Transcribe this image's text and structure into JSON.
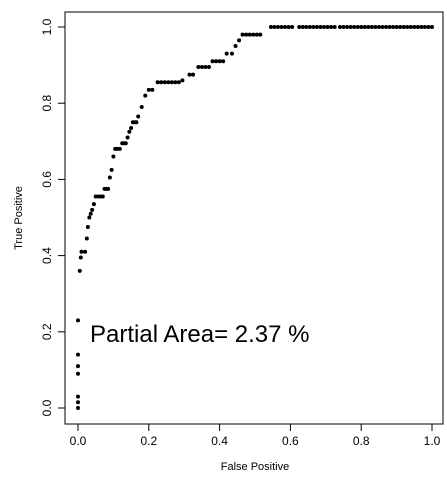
{
  "chart_data": {
    "type": "scatter",
    "xlabel": "False Positive",
    "ylabel": "True Positive",
    "xlim": [
      0,
      1
    ],
    "ylim": [
      0,
      1
    ],
    "x_ticks": [
      0.0,
      0.2,
      0.4,
      0.6,
      0.8,
      1.0
    ],
    "x_tick_labels": [
      "0.0",
      "0.2",
      "0.4",
      "0.6",
      "0.8",
      "1.0"
    ],
    "y_ticks": [
      0.0,
      0.2,
      0.4,
      0.6,
      0.8,
      1.0
    ],
    "y_tick_labels": [
      "0.0",
      "0.2",
      "0.4",
      "0.6",
      "0.8",
      "1.0"
    ],
    "grid": false,
    "marker_color": "#000000",
    "annotation": "Partial Area=  2.37 %",
    "points": [
      [
        0.0,
        0.0
      ],
      [
        0.0,
        0.015
      ],
      [
        0.0,
        0.03
      ],
      [
        0.0,
        0.09
      ],
      [
        0.0,
        0.11
      ],
      [
        0.0,
        0.14
      ],
      [
        0.0,
        0.23
      ],
      [
        0.005,
        0.36
      ],
      [
        0.008,
        0.395
      ],
      [
        0.01,
        0.41
      ],
      [
        0.02,
        0.41
      ],
      [
        0.025,
        0.445
      ],
      [
        0.028,
        0.475
      ],
      [
        0.032,
        0.5
      ],
      [
        0.036,
        0.51
      ],
      [
        0.04,
        0.52
      ],
      [
        0.045,
        0.535
      ],
      [
        0.05,
        0.555
      ],
      [
        0.058,
        0.555
      ],
      [
        0.064,
        0.555
      ],
      [
        0.07,
        0.555
      ],
      [
        0.075,
        0.575
      ],
      [
        0.08,
        0.575
      ],
      [
        0.085,
        0.575
      ],
      [
        0.09,
        0.605
      ],
      [
        0.095,
        0.625
      ],
      [
        0.1,
        0.66
      ],
      [
        0.105,
        0.68
      ],
      [
        0.11,
        0.68
      ],
      [
        0.118,
        0.68
      ],
      [
        0.125,
        0.695
      ],
      [
        0.13,
        0.695
      ],
      [
        0.135,
        0.695
      ],
      [
        0.14,
        0.71
      ],
      [
        0.145,
        0.725
      ],
      [
        0.15,
        0.735
      ],
      [
        0.155,
        0.75
      ],
      [
        0.16,
        0.75
      ],
      [
        0.165,
        0.75
      ],
      [
        0.17,
        0.765
      ],
      [
        0.18,
        0.79
      ],
      [
        0.19,
        0.82
      ],
      [
        0.2,
        0.835
      ],
      [
        0.21,
        0.835
      ],
      [
        0.225,
        0.855
      ],
      [
        0.235,
        0.855
      ],
      [
        0.245,
        0.855
      ],
      [
        0.255,
        0.855
      ],
      [
        0.265,
        0.855
      ],
      [
        0.275,
        0.855
      ],
      [
        0.285,
        0.855
      ],
      [
        0.295,
        0.86
      ],
      [
        0.315,
        0.875
      ],
      [
        0.325,
        0.875
      ],
      [
        0.34,
        0.895
      ],
      [
        0.35,
        0.895
      ],
      [
        0.36,
        0.895
      ],
      [
        0.37,
        0.895
      ],
      [
        0.38,
        0.91
      ],
      [
        0.39,
        0.91
      ],
      [
        0.4,
        0.91
      ],
      [
        0.41,
        0.91
      ],
      [
        0.42,
        0.93
      ],
      [
        0.435,
        0.93
      ],
      [
        0.445,
        0.95
      ],
      [
        0.455,
        0.965
      ],
      [
        0.465,
        0.98
      ],
      [
        0.475,
        0.98
      ],
      [
        0.485,
        0.98
      ],
      [
        0.495,
        0.98
      ],
      [
        0.505,
        0.98
      ],
      [
        0.515,
        0.98
      ],
      [
        0.545,
        1.0
      ],
      [
        0.555,
        1.0
      ],
      [
        0.565,
        1.0
      ],
      [
        0.575,
        1.0
      ],
      [
        0.585,
        1.0
      ],
      [
        0.595,
        1.0
      ],
      [
        0.605,
        1.0
      ],
      [
        0.625,
        1.0
      ],
      [
        0.635,
        1.0
      ],
      [
        0.645,
        1.0
      ],
      [
        0.655,
        1.0
      ],
      [
        0.665,
        1.0
      ],
      [
        0.675,
        1.0
      ],
      [
        0.685,
        1.0
      ],
      [
        0.695,
        1.0
      ],
      [
        0.705,
        1.0
      ],
      [
        0.715,
        1.0
      ],
      [
        0.725,
        1.0
      ],
      [
        0.74,
        1.0
      ],
      [
        0.75,
        1.0
      ],
      [
        0.76,
        1.0
      ],
      [
        0.77,
        1.0
      ],
      [
        0.78,
        1.0
      ],
      [
        0.79,
        1.0
      ],
      [
        0.8,
        1.0
      ],
      [
        0.81,
        1.0
      ],
      [
        0.82,
        1.0
      ],
      [
        0.83,
        1.0
      ],
      [
        0.84,
        1.0
      ],
      [
        0.85,
        1.0
      ],
      [
        0.86,
        1.0
      ],
      [
        0.87,
        1.0
      ],
      [
        0.88,
        1.0
      ],
      [
        0.89,
        1.0
      ],
      [
        0.9,
        1.0
      ],
      [
        0.91,
        1.0
      ],
      [
        0.92,
        1.0
      ],
      [
        0.93,
        1.0
      ],
      [
        0.94,
        1.0
      ],
      [
        0.95,
        1.0
      ],
      [
        0.96,
        1.0
      ],
      [
        0.97,
        1.0
      ],
      [
        0.98,
        1.0
      ],
      [
        0.99,
        1.0
      ],
      [
        1.0,
        1.0
      ]
    ]
  }
}
